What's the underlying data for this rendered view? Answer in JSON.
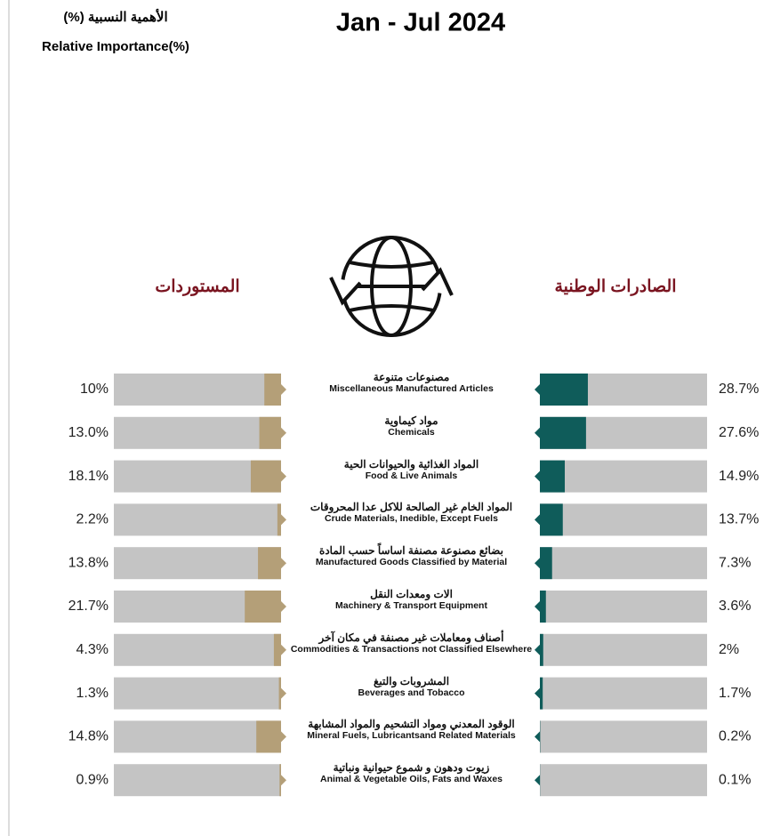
{
  "chart_data": {
    "type": "butterfly",
    "title": "Jan - Jul 2024",
    "subtitle_ar": "الأهمية النسبية (%)",
    "subtitle": "Relative Importance(%)",
    "categories_ar": [
      "مصنوعات متنوعة",
      "مواد كيماوية",
      "المواد الغذائية والحيوانات الحية",
      "المواد الخام غير الصالحة للاكل عدا المحروقات",
      "بضائع مصنوعة مصنفة اساساً حسب المادة",
      "الات ومعدات النقل",
      "أصناف ومعاملات غير مصنفة في مكان آخر",
      "المشروبات والتبغ",
      "الوقود المعدني ومواد التشحيم والمواد المشابهة",
      "زيوت ودهون و شموع حيوانية ونباتية"
    ],
    "categories": [
      "Miscellaneous Manufactured Articles",
      "Chemicals",
      "Food & Live Animals",
      "Crude Materials, Inedible, Except Fuels",
      "Manufactured Goods Classified by Material",
      "Machinery & Transport Equipment",
      "Commodities & Transactions not Classified Elsewhere",
      "Beverages and Tobacco",
      "Mineral Fuels, Lubricantsand Related Materials",
      "Animal & Vegetable Oils, Fats and Waxes"
    ],
    "xlim": [
      0,
      100
    ],
    "series": [
      {
        "name": "المستوردات",
        "color": "#b49f78",
        "side": "left",
        "values": [
          10,
          13.0,
          18.1,
          2.2,
          13.8,
          21.7,
          4.3,
          1.3,
          14.8,
          0.9
        ],
        "value_labels": [
          "10%",
          "13.0%",
          "18.1%",
          "2.2%",
          "13.8%",
          "21.7%",
          "4.3%",
          "1.3%",
          "14.8%",
          "0.9%"
        ]
      },
      {
        "name": "الصادرات الوطنية",
        "color": "#0f5c5a",
        "side": "right",
        "values": [
          28.7,
          27.6,
          14.9,
          13.7,
          7.3,
          3.6,
          2,
          1.7,
          0.2,
          0.1
        ],
        "value_labels": [
          "28.7%",
          "27.6%",
          "14.9%",
          "13.7%",
          "7.3%",
          "3.6%",
          "2%",
          "1.7%",
          "0.2%",
          "0.1%"
        ]
      }
    ]
  }
}
